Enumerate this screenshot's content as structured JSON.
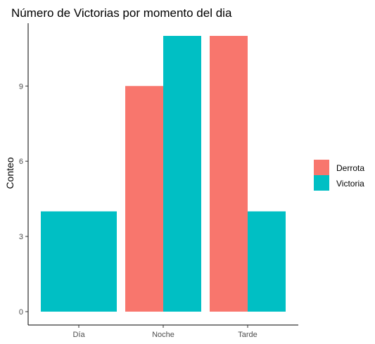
{
  "chart_data": {
    "type": "bar",
    "title": "Número de Victorias por momento del dia",
    "xlabel": "",
    "ylabel": "Conteo",
    "categories": [
      "Día",
      "Noche",
      "Tarde"
    ],
    "series": [
      {
        "name": "Derrota",
        "color": "#f8766d",
        "values": [
          null,
          9,
          11
        ]
      },
      {
        "name": "Victoria",
        "color": "#00bfc4",
        "values": [
          4,
          11,
          4
        ]
      }
    ],
    "ylim": [
      0,
      11
    ],
    "yticks": [
      0,
      3,
      6,
      9
    ],
    "grid": false,
    "legend_position": "right",
    "bar_position": "dodge"
  }
}
